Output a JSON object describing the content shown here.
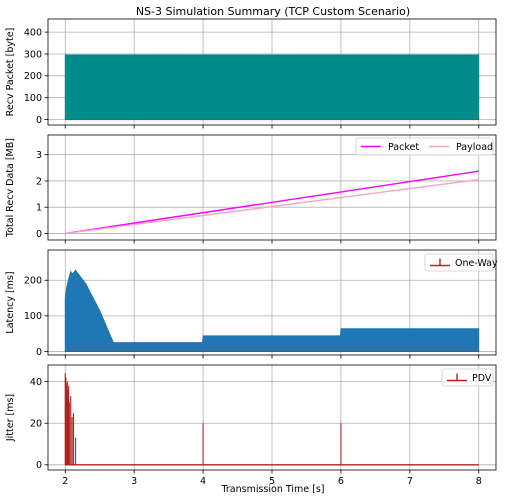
{
  "chart_data": {
    "title": "NS-3 Simulation Summary (TCP Custom Scenario)",
    "xlabel": "Transmission Time [s]",
    "xlim": [
      1.75,
      8.25
    ],
    "xticks": [
      2,
      3,
      4,
      5,
      6,
      7,
      8
    ],
    "grid": true,
    "subplots": [
      {
        "type": "area",
        "ylabel": "Recv Packet [byte]",
        "ylim": [
          -25,
          460
        ],
        "yticks": [
          0,
          100,
          200,
          300,
          400
        ],
        "series": [
          {
            "color": "#008b8b",
            "x": [
              2.0,
              8.0
            ],
            "y": [
              296,
              296
            ],
            "baseline": 0
          }
        ],
        "line": {
          "color": "#d62728",
          "x": [
            2.0,
            8.0
          ],
          "y": [
            0,
            0
          ]
        }
      },
      {
        "type": "line",
        "ylabel": "Total Recv Data [MB]",
        "ylim": [
          -0.25,
          3.75
        ],
        "yticks": [
          0,
          1,
          2,
          3
        ],
        "legend": {
          "placement": "top-right",
          "ncol": 2
        },
        "series": [
          {
            "name": "Packet",
            "color": "#ff00ff",
            "x": [
              2.0,
              8.0
            ],
            "y": [
              0.0,
              2.37
            ]
          },
          {
            "name": "Payload",
            "color": "#f4a6c8",
            "x": [
              2.0,
              8.0
            ],
            "y": [
              0.0,
              2.05
            ]
          }
        ]
      },
      {
        "type": "area",
        "ylabel": "Latency [ms]",
        "ylim": [
          -10,
          285
        ],
        "yticks": [
          0,
          100,
          200
        ],
        "legend": {
          "placement": "top-right",
          "entries": [
            "One-Way"
          ],
          "color": "#b22222"
        },
        "series": [
          {
            "color": "#1f77b4",
            "x": [
              2.0,
              2.02,
              2.05,
              2.08,
              2.1,
              2.15,
              2.2,
              2.3,
              2.5,
              2.7,
              3.99,
              4.0,
              5.99,
              6.0,
              8.0
            ],
            "y": [
              150,
              180,
              205,
              225,
              218,
              228,
              215,
              190,
              115,
              25,
              25,
              44,
              44,
              64,
              64
            ],
            "baseline": 0
          }
        ],
        "line": {
          "color": "#d62728",
          "x": [
            2.0,
            8.0
          ],
          "y": [
            0,
            0
          ]
        }
      },
      {
        "type": "stem",
        "ylabel": "Jitter [ms]",
        "ylim": [
          -2.5,
          48
        ],
        "yticks": [
          0,
          20,
          40
        ],
        "legend": {
          "placement": "top-right",
          "entries": [
            "PDV"
          ],
          "color": "#b22222"
        },
        "series": [
          {
            "color": "#b22222",
            "x": [
              2.0,
              2.01,
              2.02,
              2.03,
              2.04,
              2.05,
              2.06,
              2.08,
              2.1,
              2.12,
              2.15,
              4.0,
              6.0
            ],
            "y": [
              44,
              42,
              39,
              40,
              36,
              38,
              30,
              33,
              23,
              25,
              13,
              20,
              20
            ]
          }
        ]
      }
    ]
  }
}
